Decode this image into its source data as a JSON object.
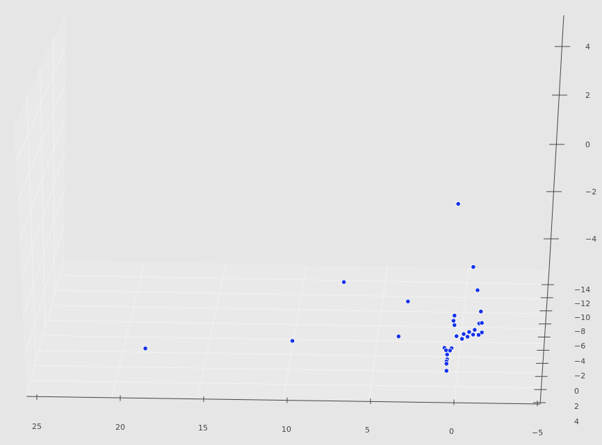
{
  "chart_data": {
    "type": "scatter",
    "title": "",
    "xlabel": "",
    "ylabel": "",
    "zlabel": "",
    "x_ticks": [
      "25",
      "20",
      "15",
      "10",
      "5",
      "0",
      "−5"
    ],
    "y_ticks": [
      "−14",
      "−12",
      "−10",
      "−8",
      "−6",
      "−4",
      "−2",
      "0",
      "2",
      "4"
    ],
    "z_ticks": [
      "4",
      "2",
      "0",
      "−2",
      "−4"
    ],
    "x_range": [
      -5,
      25
    ],
    "y_range": [
      -14,
      4
    ],
    "z_range": [
      -5,
      4.5
    ],
    "grid": true,
    "marker_color": "#1432e8",
    "points": [
      {
        "x": 19.0,
        "y": -4,
        "z": -3.6
      },
      {
        "x": 10.0,
        "y": -4,
        "z": -3.4
      },
      {
        "x": 7.0,
        "y": -8,
        "z": 0.3
      },
      {
        "x": 3.5,
        "y": -4,
        "z": -3.3
      },
      {
        "x": 3.0,
        "y": -6,
        "z": -1.2
      },
      {
        "x": 0.0,
        "y": -8,
        "z": 3.5
      },
      {
        "x": -1.0,
        "y": -6,
        "z": 0.2
      },
      {
        "x": -1.3,
        "y": -5,
        "z": -1.1
      },
      {
        "x": -1.5,
        "y": -5,
        "z": -2.0
      },
      {
        "x": -1.4,
        "y": -5,
        "z": -2.5
      },
      {
        "x": -1.6,
        "y": -4,
        "z": -2.8
      },
      {
        "x": -1.6,
        "y": -4,
        "z": -3.2
      },
      {
        "x": -1.4,
        "y": -4,
        "z": -3.3
      },
      {
        "x": -1.2,
        "y": -3,
        "z": -3.4
      },
      {
        "x": -1.1,
        "y": -3,
        "z": -3.6
      },
      {
        "x": -0.9,
        "y": -2,
        "z": -3.8
      },
      {
        "x": -0.8,
        "y": -2,
        "z": -4.0
      },
      {
        "x": -0.6,
        "y": -1,
        "z": -4.2
      },
      {
        "x": -0.5,
        "y": -1,
        "z": -4.4
      },
      {
        "x": -0.2,
        "y": 0,
        "z": -4.6
      },
      {
        "x": 0.0,
        "y": -2,
        "z": -3.1
      },
      {
        "x": 0.0,
        "y": -2,
        "z": -3.5
      },
      {
        "x": 0.1,
        "y": -3,
        "z": -3.0
      },
      {
        "x": 0.1,
        "y": 0,
        "z": -5.1
      },
      {
        "x": 0.2,
        "y": 0,
        "z": -5.2
      },
      {
        "x": 0.5,
        "y": 1,
        "z": -5.4
      },
      {
        "x": 0.4,
        "y": 1,
        "z": -5.5
      },
      {
        "x": 0.3,
        "y": 2,
        "z": -6.0
      },
      {
        "x": 0.3,
        "y": 2,
        "z": -6.2
      },
      {
        "x": 0.3,
        "y": 3,
        "z": -6.6
      },
      {
        "x": 0.3,
        "y": 3,
        "z": -6.7
      },
      {
        "x": 0.3,
        "y": 3,
        "z": -7.0
      }
    ]
  }
}
